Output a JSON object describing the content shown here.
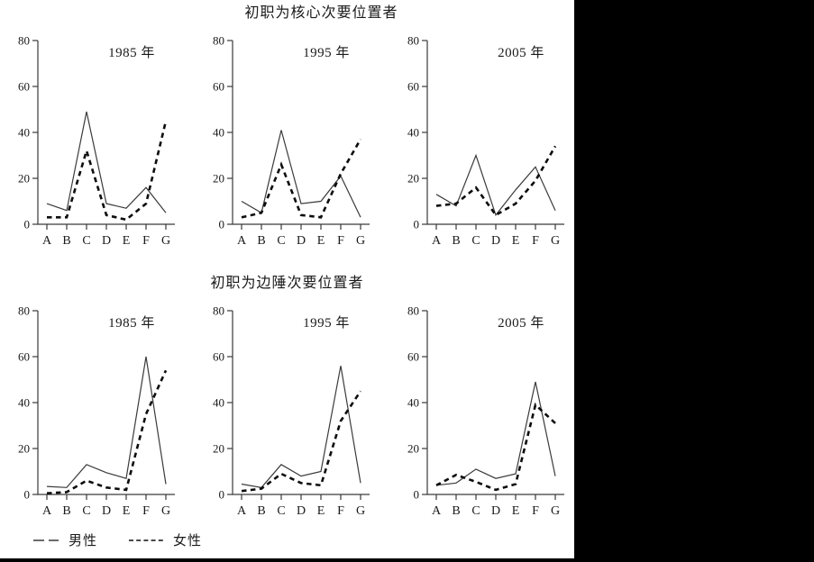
{
  "page": {
    "top_title": "初职为核心次要位置者",
    "bottom_title": "初职为边陲次要位置者"
  },
  "legend": {
    "male_label": "男性",
    "female_label": "女性",
    "male_style": "solid-long-dash-sample",
    "female_style": "short-dash-sample"
  },
  "colors": {
    "male_line": "#3a3a3a",
    "female_line": "#0d0d0d",
    "axis": "#3a3a3a",
    "text": "#1a1a1a",
    "background": "#ffffff",
    "mask": "#000000"
  },
  "chart_data": [
    {
      "type": "line",
      "row_group": "初职为核心次要位置者",
      "title": "1985 年",
      "categories": [
        "A",
        "B",
        "C",
        "D",
        "E",
        "F",
        "G"
      ],
      "ylim": [
        0,
        80
      ],
      "yticks": [
        0,
        20,
        40,
        60,
        80
      ],
      "grid": false,
      "legend_position": "figure-bottom-left",
      "series": [
        {
          "name": "男性",
          "style": "solid",
          "values": [
            9,
            6,
            49,
            9,
            7,
            16,
            5
          ]
        },
        {
          "name": "女性",
          "style": "dashed",
          "values": [
            3,
            3,
            32,
            4,
            2,
            9,
            45
          ]
        }
      ]
    },
    {
      "type": "line",
      "row_group": "初职为核心次要位置者",
      "title": "1995 年",
      "categories": [
        "A",
        "B",
        "C",
        "D",
        "E",
        "F",
        "G"
      ],
      "ylim": [
        0,
        80
      ],
      "yticks": [
        0,
        20,
        40,
        60,
        80
      ],
      "grid": false,
      "series": [
        {
          "name": "男性",
          "style": "solid",
          "values": [
            10,
            5,
            41,
            9,
            10,
            21,
            3
          ]
        },
        {
          "name": "女性",
          "style": "dashed",
          "values": [
            3,
            5,
            26,
            4,
            3,
            22,
            37
          ]
        }
      ]
    },
    {
      "type": "line",
      "row_group": "初职为核心次要位置者",
      "title": "2005 年",
      "categories": [
        "A",
        "B",
        "C",
        "D",
        "E",
        "F",
        "G"
      ],
      "ylim": [
        0,
        80
      ],
      "yticks": [
        0,
        20,
        40,
        60,
        80
      ],
      "grid": false,
      "series": [
        {
          "name": "男性",
          "style": "solid",
          "values": [
            13,
            8,
            30,
            4,
            15,
            25,
            6
          ]
        },
        {
          "name": "女性",
          "style": "dashed",
          "values": [
            8,
            9,
            16,
            4,
            9,
            19,
            34
          ]
        }
      ]
    },
    {
      "type": "line",
      "row_group": "初职为边陲次要位置者",
      "title": "1985 年",
      "categories": [
        "A",
        "B",
        "C",
        "D",
        "E",
        "F",
        "G"
      ],
      "ylim": [
        0,
        80
      ],
      "yticks": [
        0,
        20,
        40,
        60,
        80
      ],
      "grid": false,
      "series": [
        {
          "name": "男性",
          "style": "solid",
          "values": [
            3.5,
            3,
            13,
            9.5,
            7,
            60,
            4.5
          ]
        },
        {
          "name": "女性",
          "style": "dashed",
          "values": [
            0.5,
            1,
            6,
            3,
            2,
            35,
            54
          ]
        }
      ]
    },
    {
      "type": "line",
      "row_group": "初职为边陲次要位置者",
      "title": "1995 年",
      "categories": [
        "A",
        "B",
        "C",
        "D",
        "E",
        "F",
        "G"
      ],
      "ylim": [
        0,
        80
      ],
      "yticks": [
        0,
        20,
        40,
        60,
        80
      ],
      "grid": false,
      "series": [
        {
          "name": "男性",
          "style": "solid",
          "values": [
            4.5,
            3,
            13,
            8,
            10,
            56,
            5
          ]
        },
        {
          "name": "女性",
          "style": "dashed",
          "values": [
            1.5,
            2.5,
            9,
            5,
            4,
            32,
            45
          ]
        }
      ]
    },
    {
      "type": "line",
      "row_group": "初职为边陲次要位置者",
      "title": "2005 年",
      "categories": [
        "A",
        "B",
        "C",
        "D",
        "E",
        "F",
        "G"
      ],
      "ylim": [
        0,
        80
      ],
      "yticks": [
        0,
        20,
        40,
        60,
        80
      ],
      "grid": false,
      "series": [
        {
          "name": "男性",
          "style": "solid",
          "values": [
            4,
            5,
            11,
            7,
            9,
            49,
            8
          ]
        },
        {
          "name": "女性",
          "style": "dashed",
          "values": [
            4,
            8.5,
            5.5,
            2,
            4.5,
            39,
            31
          ]
        }
      ]
    }
  ]
}
